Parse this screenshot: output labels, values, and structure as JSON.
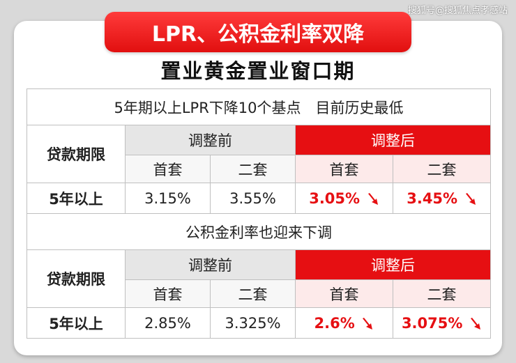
{
  "watermark": "搜狐号@搜狐焦点孝感站",
  "banner": "LPR、公积金利率双降",
  "subtitle": "置业黄金置业窗口期",
  "section1": {
    "heading": "5年期以上LPR下降10个基点　目前历史最低",
    "term_label": "贷款期限",
    "before": "调整前",
    "after": "调整后",
    "first": "首套",
    "second": "二套",
    "row_label": "5年以上",
    "before_first": "3.15%",
    "before_second": "3.55%",
    "after_first": "3.05%",
    "after_second": "3.45%"
  },
  "section2": {
    "heading": "公积金利率也迎来下调",
    "term_label": "贷款期限",
    "before": "调整前",
    "after": "调整后",
    "first": "首套",
    "second": "二套",
    "row_label": "5年以上",
    "before_first": "2.85%",
    "before_second": "3.325%",
    "after_first": "2.6%",
    "after_second": "3.075%"
  },
  "colors": {
    "accent_red": "#e60f12",
    "header_gray": "#e6e6e6",
    "after_pink": "#fdeaea"
  },
  "icons": {
    "decrease": "down-arrow-icon"
  }
}
